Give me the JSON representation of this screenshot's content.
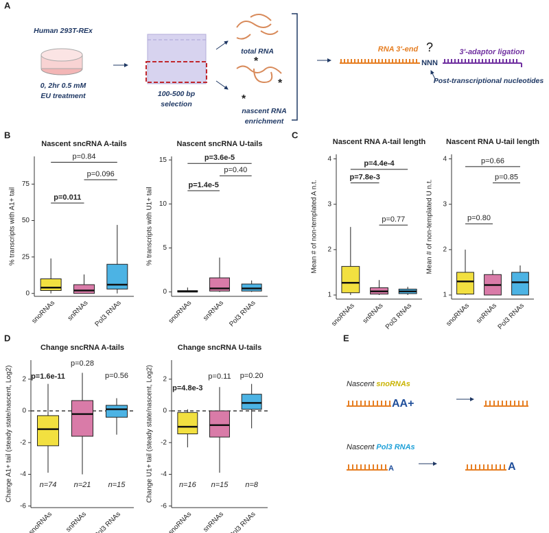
{
  "figure": {
    "panel_labels": [
      "A",
      "B",
      "C",
      "D",
      "E"
    ],
    "panel_a": {
      "cells": "Human 293T-REx",
      "treatment": [
        "0, 2hr 0.5 mM",
        "EU treatment"
      ],
      "selection": [
        "100-500 bp",
        "selection"
      ],
      "total": "total RNA",
      "nascent": [
        "nascent RNA",
        "enrichment"
      ],
      "rna_end": "RNA 3'-end",
      "question": "?",
      "nnn": "NNN",
      "adaptor": "3'-adaptor ligation",
      "post": "Post-transcriptional nucleotides"
    },
    "panel_e": {
      "nascent": "Nascent",
      "sno": "snoRNAs",
      "pol3": "Pol3 RNAs",
      "aa": "AA+",
      "a_small": "A",
      "a_large": "A"
    }
  },
  "chart_data": [
    {
      "type": "box",
      "title": "Nascent sncRNA A-tails",
      "ylabel": "% transcripts with A1+ tail",
      "categories": [
        "snoRNAs",
        "snRNAs",
        "Pol3 RNAs"
      ],
      "colors": [
        "#f2e040",
        "#d97ba8",
        "#4cb3e4"
      ],
      "boxes": [
        {
          "low": 0,
          "q1": 2,
          "median": 4,
          "q3": 10,
          "high": 24
        },
        {
          "low": 0,
          "q1": 0,
          "median": 2,
          "q3": 6,
          "high": 13
        },
        {
          "low": 0,
          "q1": 3,
          "median": 6,
          "q3": 20,
          "high": 47
        }
      ],
      "ylim": [
        -2,
        94
      ],
      "yticks": [
        0,
        25,
        50,
        75
      ],
      "comparisons": [
        {
          "label": "p=0.011",
          "bold": true
        },
        {
          "label": "p=0.84",
          "bold": false
        },
        {
          "label": "p=0.096",
          "bold": false
        }
      ]
    },
    {
      "type": "box",
      "title": "Nascent sncRNA U-tails",
      "ylabel": "% transcripts with U1+ tail",
      "categories": [
        "snoRNAs",
        "snRNAs",
        "Pol3 RNAs"
      ],
      "colors": [
        "#f2e040",
        "#d97ba8",
        "#4cb3e4"
      ],
      "boxes": [
        {
          "low": 0,
          "q1": 0,
          "median": 0.05,
          "q3": 0.15,
          "high": 0.5
        },
        {
          "low": 0,
          "q1": 0.1,
          "median": 0.4,
          "q3": 1.6,
          "high": 3.9
        },
        {
          "low": 0,
          "q1": 0.1,
          "median": 0.4,
          "q3": 0.9,
          "high": 1.3
        }
      ],
      "ylim": [
        -0.5,
        15.4
      ],
      "yticks": [
        0,
        5,
        10,
        15
      ],
      "comparisons": [
        {
          "label": "p=1.4e-5",
          "bold": true
        },
        {
          "label": "p=3.6e-5",
          "bold": true
        },
        {
          "label": "p=0.40",
          "bold": false
        }
      ]
    },
    {
      "type": "box",
      "title": "Nascent RNA A-tail length",
      "ylabel": "Mean # of non-templated A n.t.",
      "categories": [
        "snoRNAs",
        "snRNAs",
        "Pol3 RNAs"
      ],
      "colors": [
        "#f2e040",
        "#d97ba8",
        "#4cb3e4"
      ],
      "boxes": [
        {
          "low": 1,
          "q1": 1.05,
          "median": 1.27,
          "q3": 1.63,
          "high": 2.5
        },
        {
          "low": 1,
          "q1": 1.02,
          "median": 1.08,
          "q3": 1.16,
          "high": 1.33
        },
        {
          "low": 1,
          "q1": 1.03,
          "median": 1.08,
          "q3": 1.13,
          "high": 1.18
        }
      ],
      "ylim": [
        0.91,
        4.1
      ],
      "yticks": [
        1,
        2,
        3,
        4
      ],
      "comparisons": [
        {
          "label": "p=4.4e-4",
          "bold": true
        },
        {
          "label": "p=7.8e-3",
          "bold": true
        },
        {
          "label": "p=0.77",
          "bold": false
        }
      ]
    },
    {
      "type": "box",
      "title": "Nascent RNA U-tail length",
      "ylabel": "Mean # of non-templated U n.t.",
      "categories": [
        "snoRNAs",
        "snRNAs",
        "Pol3 RNAs"
      ],
      "colors": [
        "#f2e040",
        "#d97ba8",
        "#4cb3e4"
      ],
      "boxes": [
        {
          "low": 1,
          "q1": 1.02,
          "median": 1.3,
          "q3": 1.5,
          "high": 2
        },
        {
          "low": 1,
          "q1": 1,
          "median": 1.22,
          "q3": 1.45,
          "high": 1.55
        },
        {
          "low": 1,
          "q1": 1,
          "median": 1.28,
          "q3": 1.5,
          "high": 1.65
        }
      ],
      "ylim": [
        0.91,
        4.1
      ],
      "yticks": [
        1,
        2,
        3,
        4
      ],
      "comparisons": [
        {
          "label": "p=0.66",
          "bold": false
        },
        {
          "label": "p=0.85",
          "bold": false
        },
        {
          "label": "p=0.80",
          "bold": false
        }
      ]
    },
    {
      "type": "box",
      "title": "Change sncRNA A-tails",
      "ylabel": "Change A1+ tail (steady state/nascent, Log2)",
      "categories": [
        "snoRNAs",
        "snRNAs",
        "Pol3 RNAs"
      ],
      "colors": [
        "#f2e040",
        "#d97ba8",
        "#4cb3e4"
      ],
      "boxes": [
        {
          "low": -3.9,
          "q1": -2.2,
          "median": -1.15,
          "q3": -0.3,
          "high": 1.7
        },
        {
          "low": -4,
          "q1": -1.6,
          "median": -0.2,
          "q3": 0.65,
          "high": 2.4
        },
        {
          "low": -1.5,
          "q1": -0.4,
          "median": 0.1,
          "q3": 0.35,
          "high": 0.8
        }
      ],
      "ylim": [
        -6.1,
        3.2
      ],
      "yticks": [
        -6,
        -4,
        -2,
        0,
        2
      ],
      "reference_line": 0,
      "p_labels": [
        {
          "label": "p=1.6e-11",
          "bold": true
        },
        {
          "label": "p=0.28",
          "bold": false
        },
        {
          "label": "p=0.56",
          "bold": false
        }
      ],
      "n_labels": [
        "n=74",
        "n=21",
        "n=15"
      ]
    },
    {
      "type": "box",
      "title": "Change sncRNA U-tails",
      "ylabel": "Change U1+ tail (steady state/nascent, Log2)",
      "categories": [
        "snoRNAs",
        "snRNAs",
        "Pol3 RNAs"
      ],
      "colors": [
        "#f2e040",
        "#d97ba8",
        "#4cb3e4"
      ],
      "boxes": [
        {
          "low": -2.3,
          "q1": -1.45,
          "median": -1,
          "q3": -0.1,
          "high": 0.1
        },
        {
          "low": -3.9,
          "q1": -1.65,
          "median": -0.9,
          "q3": 0,
          "high": 1.5
        },
        {
          "low": -1.1,
          "q1": 0.1,
          "median": 0.5,
          "q3": 1.05,
          "high": 1.7
        }
      ],
      "ylim": [
        -6.1,
        3.2
      ],
      "yticks": [
        -6,
        -4,
        -2,
        0,
        2
      ],
      "reference_line": 0,
      "p_labels": [
        {
          "label": "p=4.8e-3",
          "bold": true
        },
        {
          "label": "p=0.11",
          "bold": false
        },
        {
          "label": "p=0.20",
          "bold": false
        }
      ],
      "n_labels": [
        "n=16",
        "n=15",
        "n=8"
      ]
    }
  ]
}
